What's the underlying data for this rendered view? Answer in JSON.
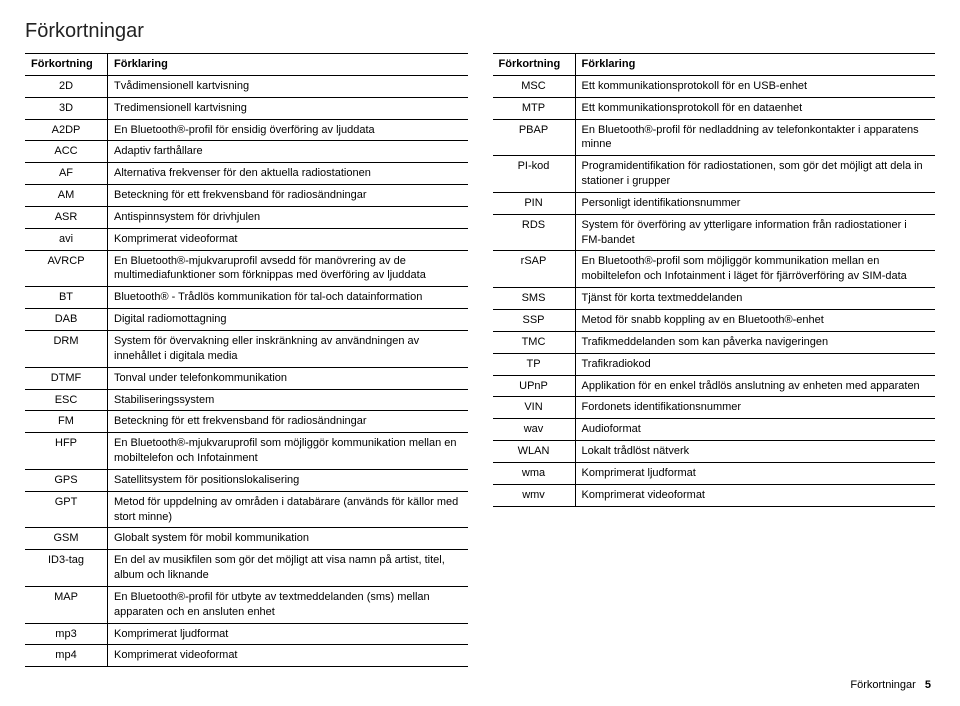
{
  "page_title": "Förkortningar",
  "left_table": {
    "headers": {
      "abbr": "Förkortning",
      "expl": "Förklaring"
    },
    "rows": [
      {
        "abbr": "2D",
        "expl": "Tvådimensionell kartvisning"
      },
      {
        "abbr": "3D",
        "expl": "Tredimensionell kartvisning"
      },
      {
        "abbr": "A2DP",
        "expl": "En Bluetooth®-profil för ensidig överföring av ljuddata"
      },
      {
        "abbr": "ACC",
        "expl": "Adaptiv farthållare"
      },
      {
        "abbr": "AF",
        "expl": "Alternativa frekvenser för den aktuella radiostationen"
      },
      {
        "abbr": "AM",
        "expl": "Beteckning för ett frekvensband för radiosändningar"
      },
      {
        "abbr": "ASR",
        "expl": "Antispinnsystem för drivhjulen"
      },
      {
        "abbr": "avi",
        "expl": "Komprimerat videoformat"
      },
      {
        "abbr": "AVRCP",
        "expl": "En Bluetooth®-mjukvaruprofil avsedd för manövrering av de multimediafunktioner som förknippas med överföring av ljuddata"
      },
      {
        "abbr": "BT",
        "expl": "Bluetooth® - Trådlös kommunikation för tal-och datainformation"
      },
      {
        "abbr": "DAB",
        "expl": "Digital radiomottagning"
      },
      {
        "abbr": "DRM",
        "expl": "System för övervakning eller inskränkning av användningen av innehållet i digitala media"
      },
      {
        "abbr": "DTMF",
        "expl": "Tonval under telefonkommunikation"
      },
      {
        "abbr": "ESC",
        "expl": "Stabiliseringssystem"
      },
      {
        "abbr": "FM",
        "expl": "Beteckning för ett frekvensband för radiosändningar"
      },
      {
        "abbr": "HFP",
        "expl": "En Bluetooth®-mjukvaruprofil som möjliggör kommunikation mellan en mobiltelefon och Infotainment"
      },
      {
        "abbr": "GPS",
        "expl": "Satellitsystem för positionslokalisering"
      },
      {
        "abbr": "GPT",
        "expl": "Metod för uppdelning av områden i databärare (används för källor med stort minne)"
      },
      {
        "abbr": "GSM",
        "expl": "Globalt system för mobil kommunikation"
      },
      {
        "abbr": "ID3-tag",
        "expl": "En del av musikfilen som gör det möjligt att visa namn på artist, titel, album och liknande"
      },
      {
        "abbr": "MAP",
        "expl": "En Bluetooth®-profil för utbyte av textmeddelanden (sms) mellan apparaten och en ansluten enhet"
      },
      {
        "abbr": "mp3",
        "expl": "Komprimerat ljudformat"
      },
      {
        "abbr": "mp4",
        "expl": "Komprimerat videoformat"
      }
    ]
  },
  "right_table": {
    "headers": {
      "abbr": "Förkortning",
      "expl": "Förklaring"
    },
    "rows": [
      {
        "abbr": "MSC",
        "expl": "Ett kommunikationsprotokoll för en USB-enhet"
      },
      {
        "abbr": "MTP",
        "expl": "Ett kommunikationsprotokoll för en dataenhet"
      },
      {
        "abbr": "PBAP",
        "expl": "En Bluetooth®-profil för nedladdning av telefonkontakter i apparatens minne"
      },
      {
        "abbr": "PI-kod",
        "expl": "Programidentifikation för radiostationen, som gör det möjligt att dela in stationer i grupper"
      },
      {
        "abbr": "PIN",
        "expl": "Personligt identifikationsnummer"
      },
      {
        "abbr": "RDS",
        "expl": "System för överföring av ytterligare information från radiostationer i FM-bandet"
      },
      {
        "abbr": "rSAP",
        "expl": "En Bluetooth®-profil som möjliggör kommunikation mellan en mobiltelefon och Infotainment i läget för fjärröverföring av SIM-data"
      },
      {
        "abbr": "SMS",
        "expl": "Tjänst för korta textmeddelanden"
      },
      {
        "abbr": "SSP",
        "expl": "Metod för snabb koppling av en Bluetooth®-enhet"
      },
      {
        "abbr": "TMC",
        "expl": "Trafikmeddelanden som kan påverka navigeringen"
      },
      {
        "abbr": "TP",
        "expl": "Trafikradiokod"
      },
      {
        "abbr": "UPnP",
        "expl": "Applikation för en enkel trådlös anslutning av enheten med apparaten"
      },
      {
        "abbr": "VIN",
        "expl": "Fordonets identifikationsnummer"
      },
      {
        "abbr": "wav",
        "expl": "Audioformat"
      },
      {
        "abbr": "WLAN",
        "expl": "Lokalt trådlöst nätverk"
      },
      {
        "abbr": "wma",
        "expl": "Komprimerat ljudformat"
      },
      {
        "abbr": "wmv",
        "expl": "Komprimerat videoformat"
      }
    ]
  },
  "footer": {
    "label": "Förkortningar",
    "page_number": "5"
  }
}
